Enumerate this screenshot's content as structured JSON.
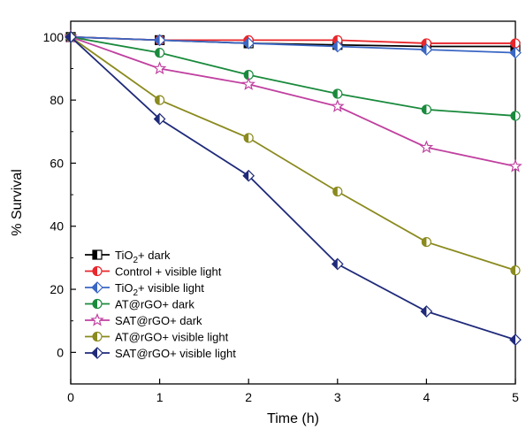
{
  "chart_data": {
    "type": "line",
    "xlabel": "Time (h)",
    "ylabel": "% Survival",
    "xlim": [
      0,
      5
    ],
    "ylim": [
      -10,
      105
    ],
    "xticks": [
      0,
      1,
      2,
      3,
      4,
      5
    ],
    "yticks": [
      0,
      20,
      40,
      60,
      80,
      100
    ],
    "x": [
      0,
      1,
      2,
      3,
      4,
      5
    ],
    "legend_position": "bottom-left",
    "grid": false,
    "series": [
      {
        "name": "TiO₂+ dark",
        "label_main": "TiO",
        "label_sub": "2",
        "label_rest": "+ dark",
        "color": "#000000",
        "marker": "square-half",
        "values": [
          100,
          99,
          98,
          97.5,
          97,
          97
        ]
      },
      {
        "name": "Control + visible light",
        "label_main": "Control + visible light",
        "label_sub": "",
        "label_rest": "",
        "color": "#e8262b",
        "marker": "circle-half",
        "values": [
          100,
          99,
          99,
          99,
          98,
          98
        ]
      },
      {
        "name": "TiO₂+ visible light",
        "label_main": "TiO",
        "label_sub": "2",
        "label_rest": "+ visible light",
        "color": "#3a66c4",
        "marker": "diamond-half",
        "values": [
          100,
          99,
          98,
          97,
          96,
          95
        ]
      },
      {
        "name": "AT@rGO+ dark",
        "label_main": "AT@rGO+ dark",
        "label_sub": "",
        "label_rest": "",
        "color": "#1a8a3c",
        "marker": "circle-half",
        "values": [
          100,
          95,
          88,
          82,
          77,
          75
        ]
      },
      {
        "name": "SAT@rGO+ dark",
        "label_main": "SAT@rGO+ dark",
        "label_sub": "",
        "label_rest": "",
        "color": "#c040a0",
        "marker": "star",
        "values": [
          100,
          90,
          85,
          78,
          65,
          59
        ]
      },
      {
        "name": "AT@rGO+ visible light",
        "label_main": "AT@rGO+ visible light",
        "label_sub": "",
        "label_rest": "",
        "color": "#8a8a1e",
        "marker": "circle-half",
        "values": [
          100,
          80,
          68,
          51,
          35,
          26
        ]
      },
      {
        "name": "SAT@rGO+ visible light",
        "label_main": "SAT@rGO+ visible light",
        "label_sub": "",
        "label_rest": "",
        "color": "#1f2a7a",
        "marker": "diamond-half",
        "values": [
          100,
          74,
          56,
          28,
          13,
          4
        ]
      }
    ]
  }
}
